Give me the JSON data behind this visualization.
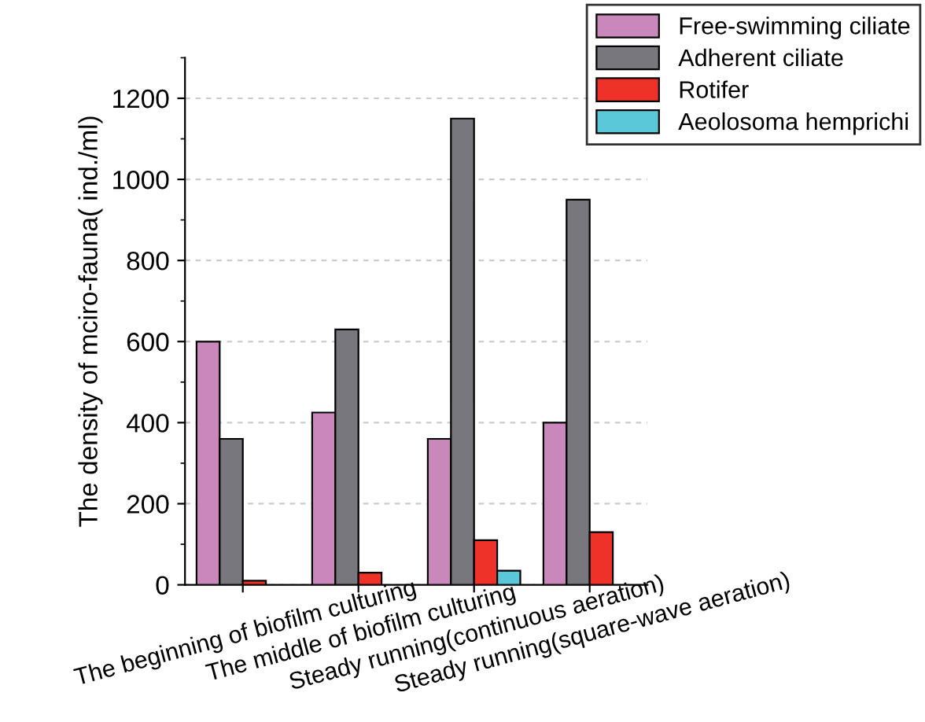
{
  "chart_data": {
    "type": "bar",
    "ylabel": "The density of mciro-fauna( ind./ml)",
    "categories": [
      "The beginning of biofilm culturing",
      "The middle of biofilm culturing",
      "Steady running(continuous aeration)",
      "Steady running(square-wave aeration)"
    ],
    "series": [
      {
        "name": "Free-swimming ciliate",
        "color": "#c987bb",
        "values": [
          600,
          425,
          360,
          400
        ]
      },
      {
        "name": "Adherent ciliate",
        "color": "#77777d",
        "values": [
          360,
          630,
          1150,
          950
        ]
      },
      {
        "name": "Rotifer",
        "color": "#ee3129",
        "values": [
          10,
          30,
          110,
          130
        ]
      },
      {
        "name": "Aeolosoma hemprichi",
        "color": "#5ac8d8",
        "values": [
          null,
          null,
          35,
          null
        ]
      }
    ],
    "ylim": [
      0,
      1300
    ],
    "yticks": [
      0,
      200,
      400,
      600,
      800,
      1000,
      1200
    ],
    "grid": "y",
    "legend": "top right"
  }
}
